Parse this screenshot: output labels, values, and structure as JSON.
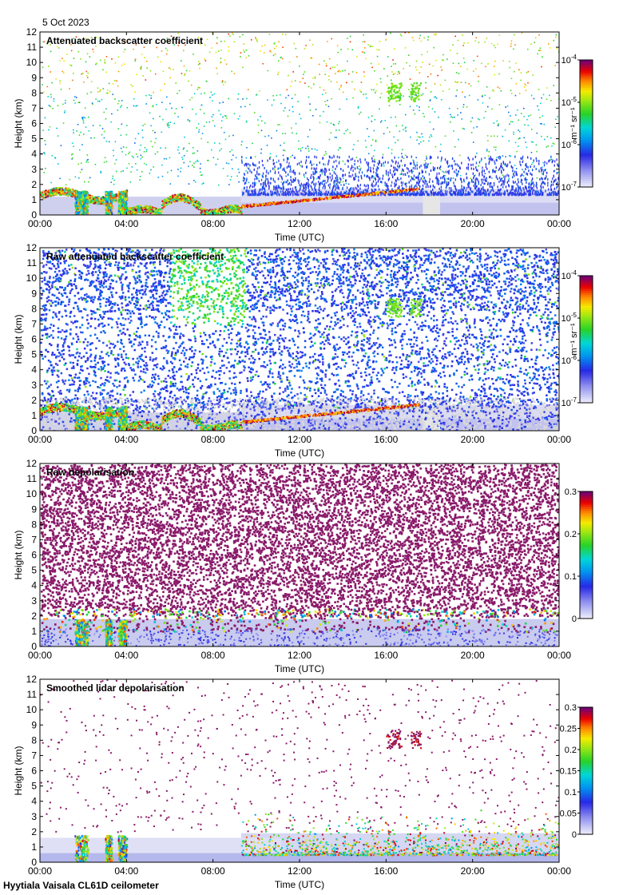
{
  "header": {
    "date": "5 Oct 2023"
  },
  "footer": {
    "site_label": "Hyytiala Vaisala CL61D ceilometer"
  },
  "chart_data": [
    {
      "type": "heatmap",
      "title": "Attenuated backscatter coefficient",
      "xlabel": "Time (UTC)",
      "ylabel": "Height (km)",
      "x_ticks": [
        "00:00",
        "04:00",
        "08:00",
        "12:00",
        "16:00",
        "20:00",
        "00:00"
      ],
      "xlim_hours": [
        0,
        24
      ],
      "y_ticks": [
        0,
        1,
        2,
        3,
        4,
        5,
        6,
        7,
        8,
        9,
        10,
        11,
        12
      ],
      "ylim": [
        0,
        12
      ],
      "colorbar": {
        "scale": "log",
        "labels": [
          "10^-7",
          "10^-6",
          "10^-5",
          "10^-4"
        ],
        "range": [
          1e-07,
          0.0001
        ],
        "unit": "m-1 sr-1",
        "unit_label": "m⁻¹ sr⁻¹"
      },
      "features": {
        "low_cloud_km": 1.5,
        "high_cloud_km": 8.0,
        "high_cloud_time_h": [
          16,
          17.5
        ]
      }
    },
    {
      "type": "heatmap",
      "title": "Raw attenuated backscatter coefficient",
      "xlabel": "Time (UTC)",
      "ylabel": "Height (km)",
      "x_ticks": [
        "00:00",
        "04:00",
        "08:00",
        "12:00",
        "16:00",
        "20:00",
        "00:00"
      ],
      "xlim_hours": [
        0,
        24
      ],
      "y_ticks": [
        0,
        1,
        2,
        3,
        4,
        5,
        6,
        7,
        8,
        9,
        10,
        11,
        12
      ],
      "ylim": [
        0,
        12
      ],
      "colorbar": {
        "scale": "log",
        "labels": [
          "10^-7",
          "10^-6",
          "10^-5",
          "10^-4"
        ],
        "range": [
          1e-07,
          0.0001
        ],
        "unit": "m-1 sr-1",
        "unit_label": "m⁻¹ sr⁻¹"
      }
    },
    {
      "type": "heatmap",
      "title": "Raw depolarisation",
      "xlabel": "Time (UTC)",
      "ylabel": "Height (km)",
      "x_ticks": [
        "00:00",
        "04:00",
        "08:00",
        "12:00",
        "16:00",
        "20:00",
        "00:00"
      ],
      "xlim_hours": [
        0,
        24
      ],
      "y_ticks": [
        0,
        1,
        2,
        3,
        4,
        5,
        6,
        7,
        8,
        9,
        10,
        11,
        12
      ],
      "ylim": [
        0,
        12
      ],
      "colorbar": {
        "scale": "linear",
        "labels": [
          "0",
          "0.1",
          "0.2",
          "0.3"
        ],
        "range": [
          0,
          0.3
        ],
        "unit": "",
        "unit_label": ""
      }
    },
    {
      "type": "heatmap",
      "title": "Smoothed lidar depolarisation",
      "xlabel": "Time (UTC)",
      "ylabel": "Height (km)",
      "x_ticks": [
        "00:00",
        "04:00",
        "08:00",
        "12:00",
        "16:00",
        "20:00",
        "00:00"
      ],
      "xlim_hours": [
        0,
        24
      ],
      "y_ticks": [
        0,
        1,
        2,
        3,
        4,
        5,
        6,
        7,
        8,
        9,
        10,
        11,
        12
      ],
      "ylim": [
        0,
        12
      ],
      "colorbar": {
        "scale": "linear",
        "labels": [
          "0",
          "0.05",
          "0.1",
          "0.15",
          "0.2",
          "0.25",
          "0.3"
        ],
        "range": [
          0,
          0.3
        ],
        "unit": "",
        "unit_label": ""
      }
    }
  ]
}
